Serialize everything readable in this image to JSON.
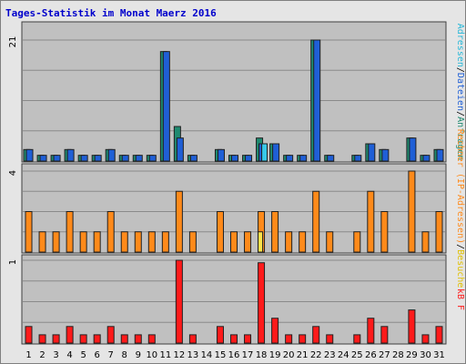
{
  "chart_data": {
    "type": "bar",
    "title": "Tages-Statistik im Monat Maerz 2016",
    "categories": [
      "1",
      "2",
      "3",
      "4",
      "5",
      "6",
      "7",
      "8",
      "9",
      "10",
      "11",
      "12",
      "13",
      "14",
      "15",
      "16",
      "17",
      "18",
      "19",
      "20",
      "21",
      "22",
      "23",
      "24",
      "25",
      "26",
      "27",
      "28",
      "29",
      "30",
      "31"
    ],
    "weekend_days": [
      "5",
      "6",
      "12",
      "13",
      "19",
      "20",
      "26",
      "27"
    ],
    "panels": [
      {
        "id": "hits",
        "ymax_label": "21",
        "ylim": [
          0,
          21
        ],
        "series": [
          {
            "name": "Anfragen",
            "color": "#1f8a70",
            "values": [
              2,
              1,
              1,
              2,
              1,
              1,
              2,
              1,
              1,
              1,
              19,
              6,
              1,
              0,
              2,
              1,
              1,
              4,
              3,
              1,
              1,
              21,
              1,
              0,
              1,
              3,
              2,
              0,
              4,
              1,
              2
            ]
          },
          {
            "name": "Dateien",
            "color": "#1f5fd6",
            "values": [
              2,
              1,
              1,
              2,
              1,
              1,
              2,
              1,
              1,
              1,
              19,
              4,
              1,
              0,
              2,
              1,
              1,
              3,
              3,
              1,
              1,
              21,
              1,
              0,
              1,
              3,
              2,
              0,
              4,
              1,
              2
            ]
          },
          {
            "name": "Adressen",
            "color": "#36c8e8",
            "values": [
              0,
              0,
              0,
              0,
              0,
              0,
              0,
              0,
              0,
              0,
              0,
              0,
              0,
              0,
              0,
              0,
              0,
              3,
              0,
              0,
              0,
              0,
              0,
              0,
              0,
              0,
              0,
              0,
              0,
              0,
              0
            ]
          }
        ],
        "side_label_parts": [
          {
            "text": "Adressen",
            "color": "#28b8d8"
          },
          {
            "text": "/",
            "color": "#000000"
          },
          {
            "text": "Dateien",
            "color": "#1f5fd6"
          },
          {
            "text": "/",
            "color": "#000000"
          },
          {
            "text": "Anfragen",
            "color": "#1f8a70"
          }
        ]
      },
      {
        "id": "visits",
        "ymax_label": "4",
        "ylim": [
          0,
          4
        ],
        "series": [
          {
            "name": "Rechner",
            "color": "#ff8a1a",
            "values": [
              2,
              1,
              1,
              2,
              1,
              1,
              2,
              1,
              1,
              1,
              1,
              3,
              1,
              0,
              2,
              1,
              1,
              2,
              2,
              1,
              1,
              3,
              1,
              0,
              1,
              3,
              2,
              0,
              4,
              1,
              2
            ]
          },
          {
            "name": "Besuche",
            "color": "#ffe44a",
            "values": [
              0,
              0,
              0,
              0,
              0,
              0,
              0,
              0,
              0,
              0,
              0,
              0,
              0,
              0,
              0,
              0,
              0,
              1,
              0,
              0,
              0,
              0,
              0,
              0,
              0,
              0,
              0,
              0,
              0,
              0,
              0
            ]
          }
        ],
        "side_label_parts": [
          {
            "text": "Rechner (IP-Adressen)",
            "color": "#ff8a1a"
          },
          {
            "text": "/",
            "color": "#000000"
          },
          {
            "text": "Besuche",
            "color": "#e0c000"
          }
        ]
      },
      {
        "id": "kb",
        "ymax_label": "1",
        "ylim": [
          0,
          1
        ],
        "series": [
          {
            "name": "kB F",
            "color": "#ff1a1a",
            "values": [
              0.2,
              0.1,
              0.1,
              0.2,
              0.1,
              0.1,
              0.2,
              0.1,
              0.1,
              0.1,
              0,
              1.0,
              0.1,
              0,
              0.2,
              0.1,
              0.1,
              0.97,
              0.3,
              0.1,
              0.1,
              0.2,
              0.1,
              0,
              0.1,
              0.3,
              0.2,
              0,
              0.4,
              0.1,
              0.2
            ]
          }
        ],
        "side_label_parts": [
          {
            "text": "kB F",
            "color": "#ff1a1a"
          }
        ]
      }
    ],
    "grid": true,
    "legend": "right-vertical"
  }
}
